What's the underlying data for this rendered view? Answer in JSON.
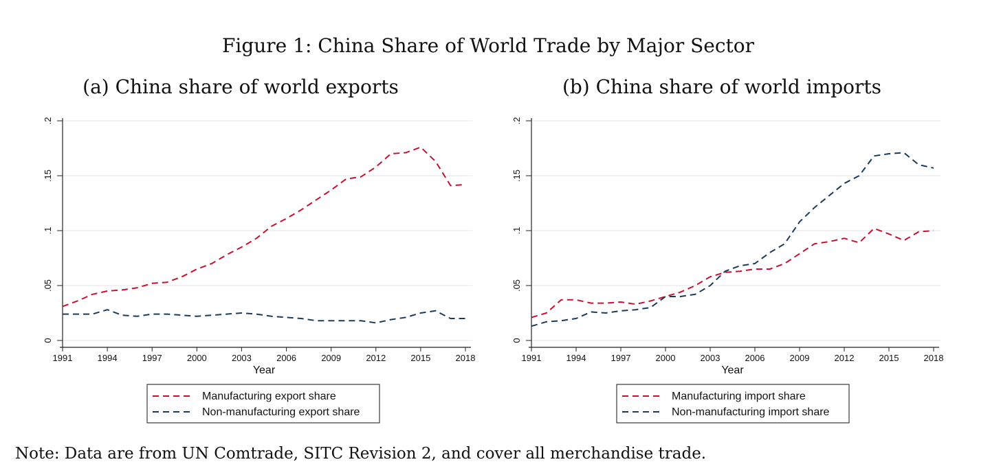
{
  "figure_title": "Figure 1: China Share of World Trade by Major Sector",
  "note": "Note: Data are from UN Comtrade, SITC Revision 2, and cover all merchandise trade.",
  "colors": {
    "manufacturing": "#c8102e",
    "non_manufacturing": "#1a3a5c",
    "grid": "#e6e6e6",
    "axis": "#222222"
  },
  "chart_data": [
    {
      "type": "line",
      "title": "(a) China share of world exports",
      "xlabel": "Year",
      "ylabel": "",
      "xlim": [
        1991,
        2018
      ],
      "ylim": [
        0,
        0.2
      ],
      "xticks": [
        "1991",
        "1994",
        "1997",
        "2000",
        "2003",
        "2006",
        "2009",
        "2012",
        "2015",
        "2018"
      ],
      "yticks": [
        "0",
        ".05",
        ".1",
        ".15",
        ".2"
      ],
      "grid": true,
      "legend": "bottom",
      "x": [
        1991,
        1992,
        1993,
        1994,
        1995,
        1996,
        1997,
        1998,
        1999,
        2000,
        2001,
        2002,
        2003,
        2004,
        2005,
        2006,
        2007,
        2008,
        2009,
        2010,
        2011,
        2012,
        2013,
        2014,
        2015,
        2016,
        2017,
        2018
      ],
      "series": [
        {
          "name": "Manufacturing export share",
          "color": "#c8102e",
          "values": [
            0.031,
            0.036,
            0.042,
            0.045,
            0.046,
            0.048,
            0.052,
            0.053,
            0.058,
            0.065,
            0.07,
            0.078,
            0.085,
            0.093,
            0.104,
            0.111,
            0.119,
            0.128,
            0.137,
            0.147,
            0.149,
            0.158,
            0.17,
            0.171,
            0.176,
            0.163,
            0.141,
            0.142
          ]
        },
        {
          "name": "Non-manufacturing export share",
          "color": "#1a3a5c",
          "values": [
            0.024,
            0.024,
            0.024,
            0.028,
            0.023,
            0.022,
            0.024,
            0.024,
            0.023,
            0.022,
            0.023,
            0.024,
            0.025,
            0.024,
            0.022,
            0.021,
            0.02,
            0.018,
            0.018,
            0.018,
            0.018,
            0.016,
            0.019,
            0.021,
            0.025,
            0.027,
            0.02,
            0.02
          ]
        }
      ]
    },
    {
      "type": "line",
      "title": "(b) China share of world imports",
      "xlabel": "Year",
      "ylabel": "",
      "xlim": [
        1991,
        2018
      ],
      "ylim": [
        0,
        0.2
      ],
      "xticks": [
        "1991",
        "1994",
        "1997",
        "2000",
        "2003",
        "2006",
        "2009",
        "2012",
        "2015",
        "2018"
      ],
      "yticks": [
        "0",
        ".05",
        ".1",
        ".15",
        ".2"
      ],
      "grid": true,
      "legend": "bottom",
      "x": [
        1991,
        1992,
        1993,
        1994,
        1995,
        1996,
        1997,
        1998,
        1999,
        2000,
        2001,
        2002,
        2003,
        2004,
        2005,
        2006,
        2007,
        2008,
        2009,
        2010,
        2011,
        2012,
        2013,
        2014,
        2015,
        2016,
        2017,
        2018
      ],
      "series": [
        {
          "name": "Manufacturing import share",
          "color": "#c8102e",
          "values": [
            0.021,
            0.025,
            0.037,
            0.037,
            0.034,
            0.034,
            0.035,
            0.033,
            0.036,
            0.04,
            0.044,
            0.05,
            0.058,
            0.062,
            0.063,
            0.065,
            0.065,
            0.07,
            0.079,
            0.088,
            0.09,
            0.093,
            0.089,
            0.102,
            0.097,
            0.091,
            0.099,
            0.1
          ]
        },
        {
          "name": "Non-manufacturing import share",
          "color": "#1a3a5c",
          "values": [
            0.013,
            0.017,
            0.018,
            0.02,
            0.026,
            0.025,
            0.027,
            0.028,
            0.03,
            0.04,
            0.04,
            0.042,
            0.05,
            0.063,
            0.068,
            0.07,
            0.08,
            0.088,
            0.108,
            0.121,
            0.132,
            0.143,
            0.15,
            0.168,
            0.17,
            0.171,
            0.16,
            0.157
          ]
        }
      ]
    }
  ]
}
